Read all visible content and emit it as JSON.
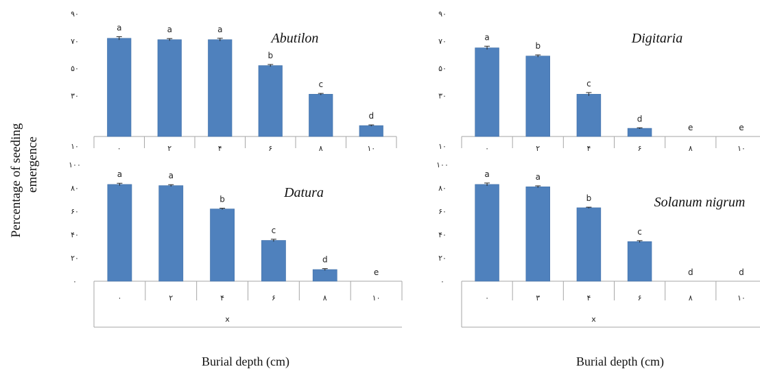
{
  "figure": {
    "ylabel_line1": "Percentage of seeding",
    "ylabel_line2": "emergence",
    "xlabel_left": "Burial depth (cm)",
    "xlabel_right": "Burial depth (cm)"
  },
  "chart_data": [
    {
      "type": "bar",
      "title": "Abutilon",
      "categories": [
        "۰",
        "۲",
        "۴",
        "۶",
        "۸",
        "۱۰"
      ],
      "values": [
        72,
        71,
        71,
        52,
        31,
        8
      ],
      "errors": [
        1.2,
        0.8,
        1.0,
        0.8,
        0.6,
        0.5
      ],
      "letters": [
        "a",
        "a",
        "a",
        "b",
        "c",
        "d"
      ],
      "yticks": [
        "۱۰",
        "۳۰",
        "۵۰",
        "۷۰",
        "۹۰"
      ],
      "ylim": [
        0,
        90
      ],
      "xlabel": "",
      "ylabel": ""
    },
    {
      "type": "bar",
      "title": "Digitaria",
      "categories": [
        "۰",
        "۲",
        "۴",
        "۶",
        "۸",
        "۱۰"
      ],
      "values": [
        65,
        59,
        31,
        6,
        0,
        0
      ],
      "errors": [
        1.2,
        0.8,
        1.2,
        0.4,
        0,
        0
      ],
      "letters": [
        "a",
        "b",
        "c",
        "d",
        "e",
        "e"
      ],
      "yticks": [
        "۱۰",
        "۳۰",
        "۵۰",
        "۷۰",
        "۹۰"
      ],
      "ylim": [
        0,
        90
      ],
      "xlabel": "",
      "ylabel": ""
    },
    {
      "type": "bar",
      "title": "Datura",
      "categories": [
        "۰",
        "۲",
        "۴",
        "۶",
        "۸",
        "۱۰"
      ],
      "values": [
        83,
        82,
        62,
        35,
        10,
        0
      ],
      "errors": [
        1.0,
        0.8,
        0.6,
        1.0,
        0.8,
        0
      ],
      "letters": [
        "a",
        "a",
        "b",
        "c",
        "d",
        "e"
      ],
      "yticks": [
        "۰",
        "۲۰",
        "۴۰",
        "۶۰",
        "۸۰",
        "۱۰۰"
      ],
      "ylim": [
        0,
        100
      ],
      "xlabel": "x",
      "ylabel": ""
    },
    {
      "type": "bar",
      "title": "Solanum nigrum",
      "categories": [
        "۰",
        "۳",
        "۴",
        "۶",
        "۸",
        "۱۰"
      ],
      "values": [
        83,
        81,
        63,
        34,
        0,
        0
      ],
      "errors": [
        1.2,
        0.8,
        0.5,
        0.8,
        0,
        0
      ],
      "letters": [
        "a",
        "a",
        "b",
        "c",
        "d",
        "d"
      ],
      "yticks": [
        "۰",
        "۲۰",
        "۴۰",
        "۶۰",
        "۸۰",
        "۱۰۰"
      ],
      "ylim": [
        0,
        100
      ],
      "xlabel": "x",
      "ylabel": ""
    }
  ]
}
